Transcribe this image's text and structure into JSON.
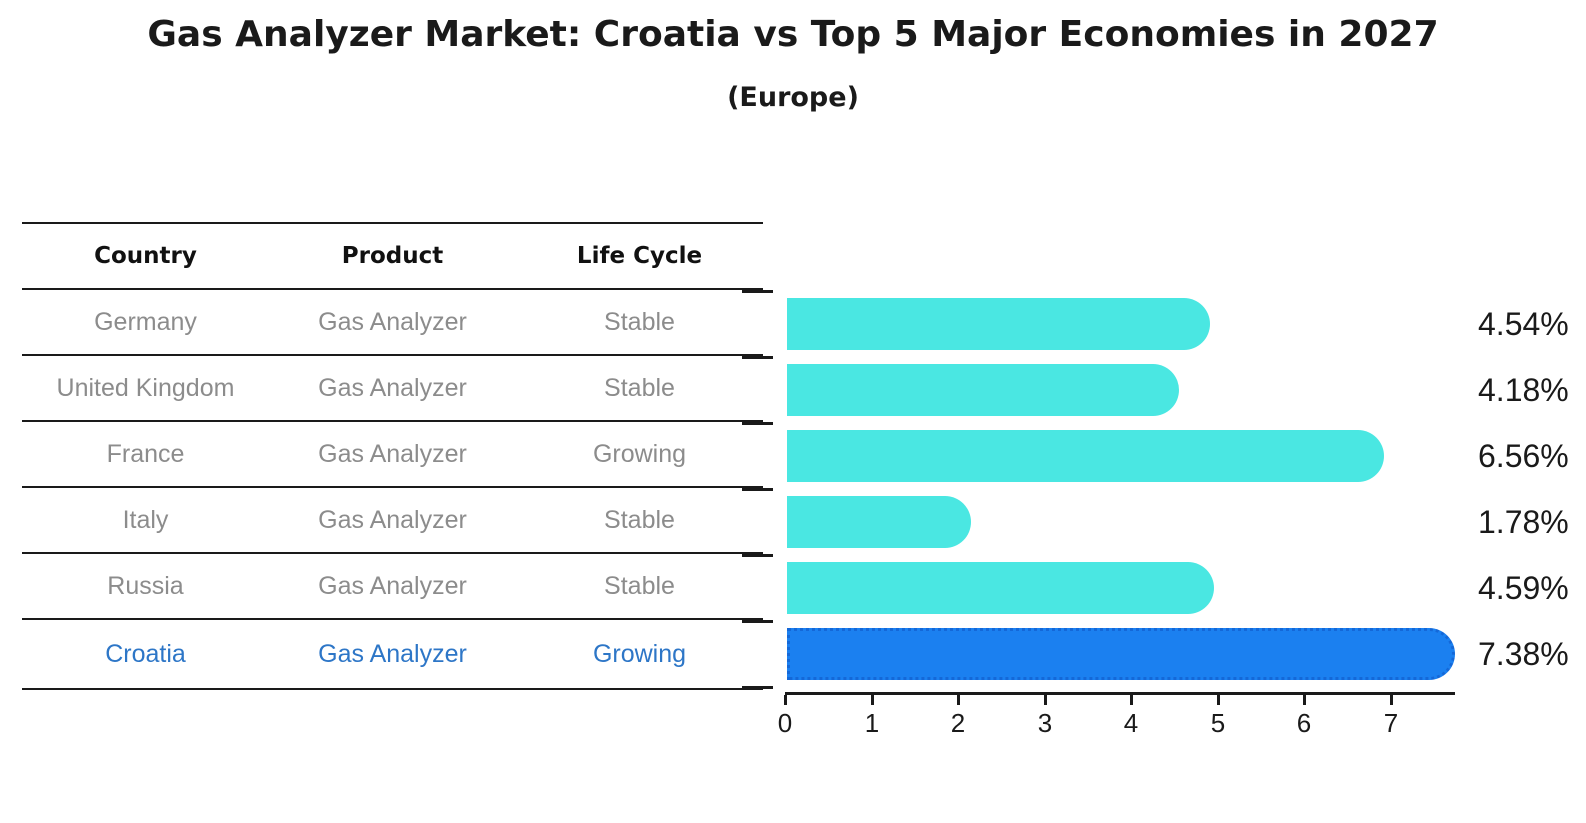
{
  "title": "Gas Analyzer Market: Croatia vs Top 5 Major Economies in 2027",
  "subtitle": "(Europe)",
  "table": {
    "headers": [
      "Country",
      "Product",
      "Life Cycle"
    ],
    "rows": [
      {
        "country": "Germany",
        "product": "Gas Analyzer",
        "life_cycle": "Stable",
        "highlighted": false
      },
      {
        "country": "United Kingdom",
        "product": "Gas Analyzer",
        "life_cycle": "Stable",
        "highlighted": false
      },
      {
        "country": "France",
        "product": "Gas Analyzer",
        "life_cycle": "Growing",
        "highlighted": false
      },
      {
        "country": "Italy",
        "product": "Gas Analyzer",
        "life_cycle": "Stable",
        "highlighted": false
      },
      {
        "country": "Russia",
        "product": "Gas Analyzer",
        "life_cycle": "Stable",
        "highlighted": false
      },
      {
        "country": "Croatia",
        "product": "Gas Analyzer",
        "life_cycle": "Growing",
        "highlighted": true
      }
    ]
  },
  "chart_data": {
    "type": "bar",
    "orientation": "horizontal",
    "title": "Gas Analyzer Market: Croatia vs Top 5 Major Economies in 2027 (Europe)",
    "categories": [
      "Germany",
      "United Kingdom",
      "France",
      "Italy",
      "Russia",
      "Croatia"
    ],
    "values": [
      4.54,
      4.18,
      6.56,
      1.78,
      4.59,
      7.38
    ],
    "value_labels": [
      "4.54%",
      "4.18%",
      "6.56%",
      "1.78%",
      "4.59%",
      "7.38%"
    ],
    "unit": "%",
    "xlim": [
      0,
      7.75
    ],
    "xticks": [
      "0",
      "1",
      "2",
      "3",
      "4",
      "5",
      "6",
      "7"
    ],
    "grid": false,
    "legend": false,
    "highlight_index": 5,
    "bar_color": "#4AE7E2",
    "highlight_bar_color": "#1B80F0"
  },
  "colors": {
    "background": "#FFFFFF",
    "bar_cyan": "#4AE7E2",
    "bar_blue": "#1B80F0",
    "bar_blue_border": "#1468D8",
    "table_text_gray": "#8C8C8C",
    "highlight_text_blue": "#2D76C7",
    "line_black": "#1A1A1A"
  }
}
